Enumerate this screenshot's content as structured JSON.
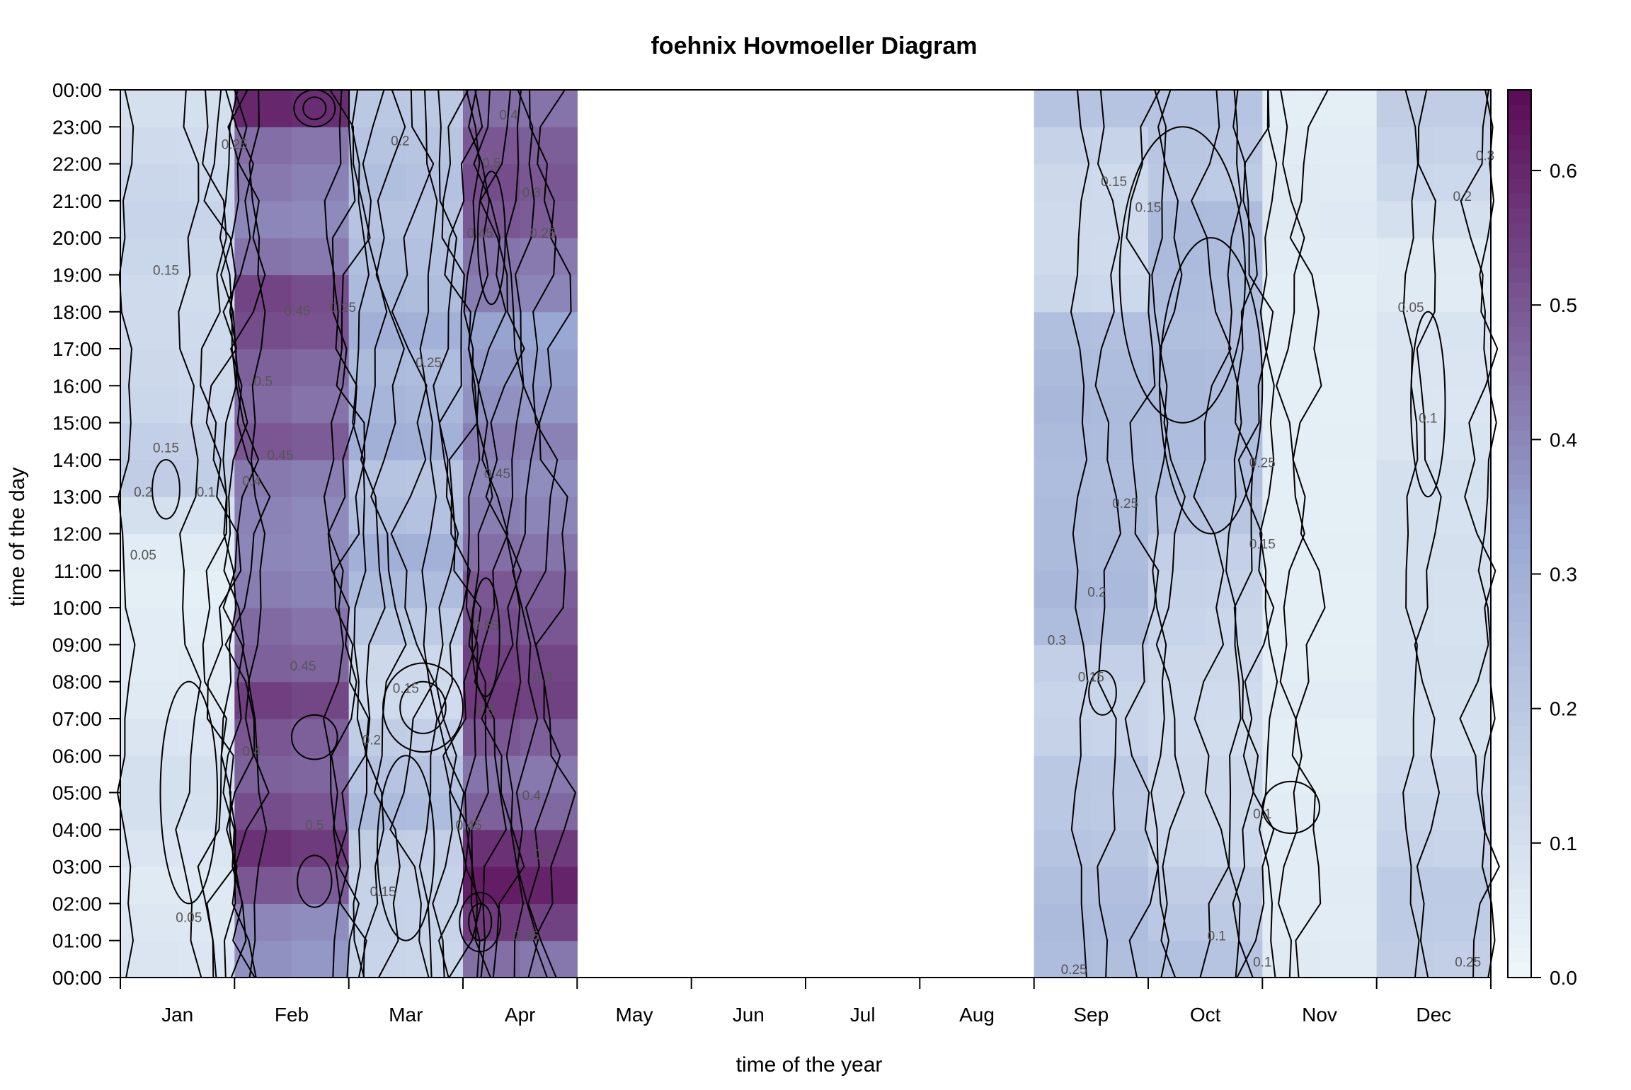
{
  "chart_data": {
    "type": "heatmap",
    "title": "foehnix Hovmoeller Diagram",
    "xlabel": "time of the year",
    "ylabel": "time of the day",
    "months": [
      "Jan",
      "Feb",
      "Mar",
      "Apr",
      "May",
      "Jun",
      "Jul",
      "Aug",
      "Sep",
      "Oct",
      "Nov",
      "Dec"
    ],
    "hours": [
      "00:00",
      "01:00",
      "02:00",
      "03:00",
      "04:00",
      "05:00",
      "06:00",
      "07:00",
      "08:00",
      "09:00",
      "10:00",
      "11:00",
      "12:00",
      "13:00",
      "14:00",
      "15:00",
      "16:00",
      "17:00",
      "18:00",
      "19:00",
      "20:00",
      "21:00",
      "22:00",
      "23:00",
      "00:00"
    ],
    "colorbar": {
      "range": [
        0,
        0.66
      ],
      "ticks": [
        "0.0",
        "0.1",
        "0.2",
        "0.3",
        "0.4",
        "0.5",
        "0.6"
      ],
      "low_color": "#eef8fa",
      "mid_color": "#9aa9d4",
      "high_color": "#5b0a55"
    },
    "month_profiles": [
      {
        "month": "Jan",
        "profile": [
          0.08,
          0.07,
          0.06,
          0.08,
          0.1,
          0.1,
          0.08,
          0.06,
          0.05,
          0.05,
          0.04,
          0.05,
          0.1,
          0.18,
          0.17,
          0.14,
          0.13,
          0.12,
          0.12,
          0.14,
          0.15,
          0.14,
          0.12,
          0.1
        ]
      },
      {
        "month": "Feb",
        "profile": [
          0.38,
          0.4,
          0.5,
          0.58,
          0.52,
          0.48,
          0.5,
          0.55,
          0.48,
          0.46,
          0.42,
          0.4,
          0.41,
          0.43,
          0.5,
          0.46,
          0.48,
          0.52,
          0.54,
          0.44,
          0.4,
          0.43,
          0.45,
          0.6
        ]
      },
      {
        "month": "Mar",
        "profile": [
          0.15,
          0.16,
          0.16,
          0.18,
          0.26,
          0.22,
          0.18,
          0.12,
          0.13,
          0.2,
          0.26,
          0.3,
          0.24,
          0.22,
          0.3,
          0.28,
          0.26,
          0.3,
          0.26,
          0.24,
          0.22,
          0.24,
          0.22,
          0.2
        ]
      },
      {
        "month": "Apr",
        "profile": [
          0.45,
          0.56,
          0.62,
          0.58,
          0.48,
          0.44,
          0.5,
          0.56,
          0.55,
          0.52,
          0.5,
          0.45,
          0.42,
          0.4,
          0.42,
          0.38,
          0.36,
          0.34,
          0.42,
          0.44,
          0.5,
          0.52,
          0.5,
          0.45
        ]
      },
      {
        "month": "May",
        "profile": null
      },
      {
        "month": "Jun",
        "profile": null
      },
      {
        "month": "Jul",
        "profile": null
      },
      {
        "month": "Aug",
        "profile": null
      },
      {
        "month": "Sep",
        "profile": [
          0.25,
          0.26,
          0.24,
          0.22,
          0.2,
          0.2,
          0.16,
          0.15,
          0.17,
          0.25,
          0.27,
          0.26,
          0.26,
          0.25,
          0.26,
          0.27,
          0.26,
          0.24,
          0.14,
          0.12,
          0.12,
          0.13,
          0.16,
          0.22
        ]
      },
      {
        "month": "Oct",
        "profile": [
          0.23,
          0.2,
          0.18,
          0.14,
          0.13,
          0.13,
          0.12,
          0.12,
          0.13,
          0.15,
          0.16,
          0.17,
          0.22,
          0.24,
          0.25,
          0.26,
          0.26,
          0.24,
          0.25,
          0.26,
          0.26,
          0.2,
          0.21,
          0.22
        ]
      },
      {
        "month": "Nov",
        "profile": [
          0.06,
          0.05,
          0.05,
          0.05,
          0.05,
          0.04,
          0.04,
          0.05,
          0.04,
          0.04,
          0.04,
          0.04,
          0.04,
          0.04,
          0.04,
          0.04,
          0.04,
          0.04,
          0.04,
          0.05,
          0.06,
          0.06,
          0.05,
          0.04
        ]
      },
      {
        "month": "Dec",
        "profile": [
          0.18,
          0.19,
          0.19,
          0.16,
          0.14,
          0.12,
          0.1,
          0.1,
          0.1,
          0.1,
          0.1,
          0.1,
          0.1,
          0.1,
          0.08,
          0.08,
          0.08,
          0.08,
          0.06,
          0.06,
          0.1,
          0.14,
          0.16,
          0.18
        ]
      }
    ],
    "contour_labels": [
      {
        "text": "0.25",
        "month": 1.0,
        "hour": 22.4
      },
      {
        "text": "0.15",
        "month": 0.4,
        "hour": 19.0
      },
      {
        "text": "0.15",
        "month": 0.4,
        "hour": 14.2
      },
      {
        "text": "0.2",
        "month": 0.2,
        "hour": 13.0
      },
      {
        "text": "0.1",
        "month": 0.75,
        "hour": 13.0
      },
      {
        "text": "0.05",
        "month": 0.2,
        "hour": 11.3
      },
      {
        "text": "0.05",
        "month": 0.6,
        "hour": 1.5
      },
      {
        "text": "0.45",
        "month": 1.55,
        "hour": 17.9
      },
      {
        "text": "0.5",
        "month": 1.25,
        "hour": 16.0
      },
      {
        "text": "0.45",
        "month": 1.4,
        "hour": 14.0
      },
      {
        "text": "0.4",
        "month": 1.15,
        "hour": 13.3
      },
      {
        "text": "0.45",
        "month": 1.6,
        "hour": 8.3
      },
      {
        "text": "0.4",
        "month": 1.15,
        "hour": 6.0
      },
      {
        "text": "0.5",
        "month": 1.7,
        "hour": 4.0
      },
      {
        "text": "0.2",
        "month": 2.45,
        "hour": 22.5
      },
      {
        "text": "0.25",
        "month": 1.95,
        "hour": 18.0
      },
      {
        "text": "0.25",
        "month": 2.7,
        "hour": 16.5
      },
      {
        "text": "0.15",
        "month": 2.5,
        "hour": 7.7
      },
      {
        "text": "0.2",
        "month": 2.2,
        "hour": 6.3
      },
      {
        "text": "0.15",
        "month": 2.3,
        "hour": 2.2
      },
      {
        "text": "0.4",
        "month": 3.4,
        "hour": 23.2
      },
      {
        "text": "0.5",
        "month": 3.25,
        "hour": 21.9
      },
      {
        "text": "0.3",
        "month": 3.6,
        "hour": 21.1
      },
      {
        "text": "0.45",
        "month": 3.15,
        "hour": 20.0
      },
      {
        "text": "0.25",
        "month": 3.7,
        "hour": 20.0
      },
      {
        "text": "0.45",
        "month": 3.3,
        "hour": 13.5
      },
      {
        "text": "0.55",
        "month": 3.2,
        "hour": 9.4
      },
      {
        "text": "0.5",
        "month": 3.2,
        "hour": 7.1
      },
      {
        "text": "0.3",
        "month": 3.7,
        "hour": 8.0
      },
      {
        "text": "0.4",
        "month": 3.6,
        "hour": 4.8
      },
      {
        "text": "0.45",
        "month": 3.05,
        "hour": 4.0
      },
      {
        "text": "0.3",
        "month": 3.7,
        "hour": 3.2
      },
      {
        "text": "0.35",
        "month": 3.55,
        "hour": 1.0
      },
      {
        "text": "0.15",
        "month": 8.7,
        "hour": 21.4
      },
      {
        "text": "0.15",
        "month": 9.0,
        "hour": 20.7
      },
      {
        "text": "0.25",
        "month": 8.8,
        "hour": 12.7
      },
      {
        "text": "0.2",
        "month": 8.55,
        "hour": 10.3
      },
      {
        "text": "0.3",
        "month": 8.2,
        "hour": 9.0
      },
      {
        "text": "0.15",
        "month": 8.5,
        "hour": 8.0
      },
      {
        "text": "0.25",
        "month": 8.35,
        "hour": 0.1
      },
      {
        "text": "0.15",
        "month": 10.0,
        "hour": 11.6
      },
      {
        "text": "0.25",
        "month": 10.0,
        "hour": 13.8
      },
      {
        "text": "0.1",
        "month": 10.0,
        "hour": 4.3
      },
      {
        "text": "0.1",
        "month": 9.6,
        "hour": 1.0
      },
      {
        "text": "0.1",
        "month": 10.0,
        "hour": 0.3
      },
      {
        "text": "0.2",
        "month": 11.75,
        "hour": 21.0
      },
      {
        "text": "0.05",
        "month": 11.3,
        "hour": 18.0
      },
      {
        "text": "0.1",
        "month": 11.45,
        "hour": 15.0
      },
      {
        "text": "0.25",
        "month": 11.8,
        "hour": 0.3
      },
      {
        "text": "0.3",
        "month": 11.95,
        "hour": 22.1
      }
    ]
  }
}
